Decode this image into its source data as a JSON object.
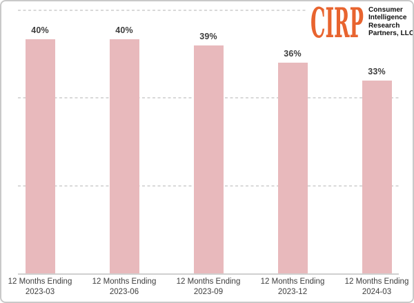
{
  "logo": {
    "brand": "CIRP",
    "brand_color": "#e8642f",
    "company_lines": [
      "Consumer",
      "Intelligence",
      "Research",
      "Partners, LLC"
    ],
    "text_color": "#0f0f0f"
  },
  "chart_data": {
    "type": "bar",
    "categories": [
      "12 Months Ending 2023-03",
      "12 Months Ending 2023-06",
      "12 Months Ending 2023-09",
      "12 Months Ending 2023-12",
      "12 Months Ending 2024-03"
    ],
    "category_line1": "12 Months Ending",
    "category_line2": [
      "2023-03",
      "2023-06",
      "2023-09",
      "2023-12",
      "2024-03"
    ],
    "values": [
      40,
      40,
      39,
      36,
      33
    ],
    "data_labels": [
      "40%",
      "40%",
      "39%",
      "36%",
      "33%"
    ],
    "title": "",
    "xlabel": "",
    "ylabel": "",
    "ylim": [
      0,
      45
    ],
    "gridlines_percent": [
      15,
      30,
      45
    ],
    "grid_style": "dashed",
    "grid_on": true,
    "legend_position": "none",
    "bar_color": "#e8b9bc",
    "label_color": "#3d3d3d",
    "grid_color": "#d9d9d9",
    "axis_color": "#cfcfcf"
  }
}
